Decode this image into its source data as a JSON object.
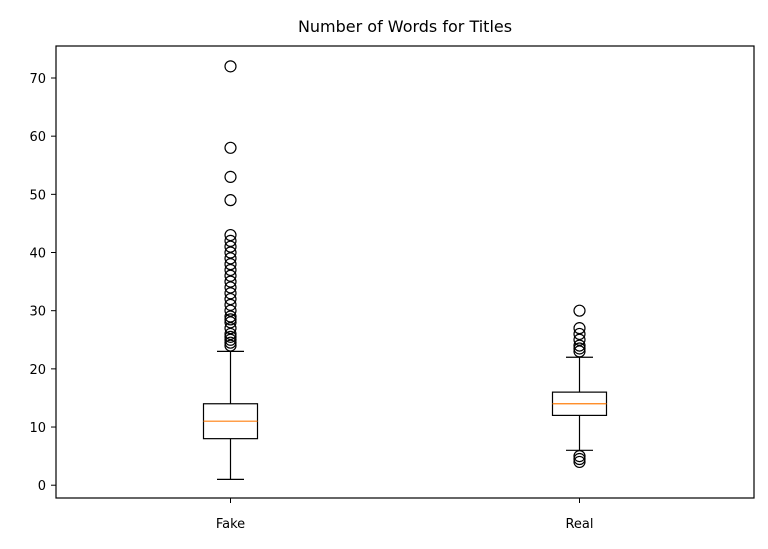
{
  "chart_data": {
    "type": "box",
    "title": "Number of Words for Titles",
    "xlabel": "",
    "ylabel": "",
    "ylim": [
      -2.2,
      75.5
    ],
    "yticks": [
      0,
      10,
      20,
      30,
      40,
      50,
      60,
      70
    ],
    "categories": [
      "Fake",
      "Real"
    ],
    "boxes": [
      {
        "category": "Fake",
        "whisker_low": 1,
        "q1": 8,
        "median": 11,
        "q3": 14,
        "whisker_high": 23,
        "outliers": [
          24,
          24.5,
          25,
          25.5,
          26,
          27,
          28,
          28.5,
          29,
          30,
          31,
          32,
          33,
          34,
          35,
          36,
          37,
          38,
          39,
          40,
          41,
          42,
          43,
          49,
          53,
          58,
          72
        ]
      },
      {
        "category": "Real",
        "whisker_low": 6,
        "q1": 12,
        "median": 14,
        "q3": 16,
        "whisker_high": 22,
        "outliers": [
          4,
          4.5,
          5,
          23,
          23.5,
          24,
          25,
          26,
          27,
          30
        ]
      }
    ],
    "colors": {
      "box": "#000000",
      "median": "#ff7f0e",
      "outlier_edge": "#000000"
    },
    "grid": false,
    "legend": "none"
  }
}
